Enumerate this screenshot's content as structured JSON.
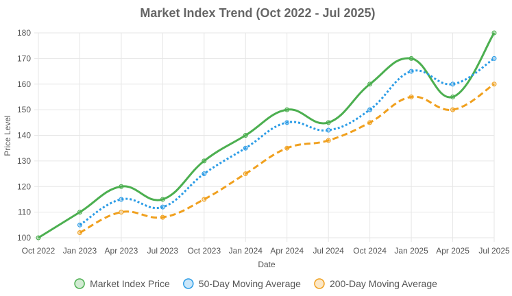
{
  "chart_data": {
    "type": "line",
    "title": "Market Index Trend (Oct 2022 - Jul 2025)",
    "xlabel": "Date",
    "ylabel": "Price Level",
    "ylim": [
      100,
      180
    ],
    "yticks": [
      100,
      110,
      120,
      130,
      140,
      150,
      160,
      170,
      180
    ],
    "categories": [
      "Oct 2022",
      "Jan 2023",
      "Apr 2023",
      "Jul 2023",
      "Oct 2023",
      "Jan 2024",
      "Apr 2024",
      "Jul 2024",
      "Oct 2024",
      "Jan 2025",
      "Apr 2025",
      "Jul 2025"
    ],
    "grid": true,
    "legend_position": "bottom",
    "series": [
      {
        "name": "Market Index Price",
        "values": [
          100,
          110,
          120,
          115,
          130,
          140,
          150,
          145,
          160,
          170,
          155,
          180
        ],
        "color": "#4caf50",
        "style": "solid"
      },
      {
        "name": "50-Day Moving Average",
        "values": [
          null,
          105,
          115,
          112,
          125,
          135,
          145,
          142,
          150,
          165,
          160,
          170
        ],
        "color": "#2b9ce6",
        "style": "dotted"
      },
      {
        "name": "200-Day Moving Average",
        "values": [
          null,
          102,
          110,
          108,
          115,
          125,
          135,
          138,
          145,
          155,
          150,
          160
        ],
        "color": "#f0a01e",
        "style": "dashed"
      }
    ]
  }
}
